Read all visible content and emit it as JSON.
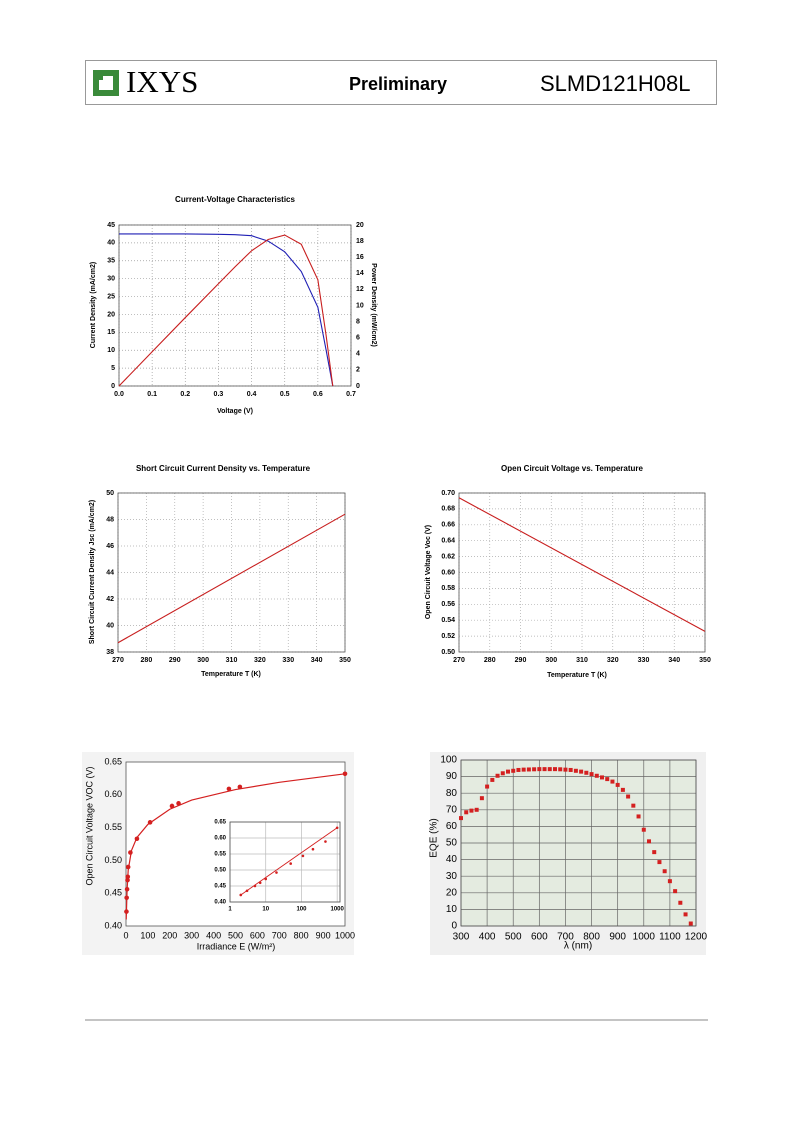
{
  "header": {
    "logo": "IXYS",
    "status": "Preliminary",
    "part_number": "SLMD121H08L"
  },
  "chart_data": [
    {
      "type": "line",
      "title": "Current-Voltage Characteristics",
      "x_label": "Voltage (V)",
      "y_label": "Current Density (mA/cm2)",
      "y2_label": "Power Density (mW/cm2)",
      "grid": true,
      "x": [
        0,
        0.1,
        0.2,
        0.3,
        0.35,
        0.4,
        0.45,
        0.5,
        0.55,
        0.6,
        0.625,
        0.645
      ],
      "series": [
        {
          "color": "#1f1fb4",
          "values": [
            42.5,
            42.5,
            42.5,
            42.4,
            42.3,
            42,
            40.5,
            37.5,
            32,
            22,
            10,
            0
          ]
        },
        {
          "color": "#c81e1e",
          "axis": "y2",
          "values": [
            0,
            4.25,
            8.5,
            12.7,
            14.8,
            16.8,
            18.2,
            18.75,
            17.6,
            13.2,
            6.25,
            0
          ]
        }
      ],
      "xlim": [
        0,
        0.7
      ],
      "xticks": [
        {
          "value": 0,
          "label": "0.0"
        },
        0.1,
        0.2,
        0.3,
        0.4,
        0.5,
        0.6,
        0.7
      ],
      "ylim": [
        0,
        45
      ],
      "yticks": [
        0,
        5,
        10,
        15,
        20,
        25,
        30,
        35,
        40,
        45
      ],
      "y2lim": [
        0,
        20
      ],
      "y2ticks": [
        0,
        2,
        4,
        6,
        8,
        10,
        12,
        14,
        16,
        18,
        20
      ]
    },
    {
      "type": "line",
      "title": "Short Circuit Current Density vs. Temperature",
      "x_label": "Temperature T (K)",
      "y_label": "Short Circuit Current Density Jsc (mA/cm2)",
      "grid": true,
      "x": [
        270,
        350
      ],
      "series": [
        {
          "color": "#c81e1e",
          "values": [
            38.7,
            48.4
          ]
        }
      ],
      "xlim": [
        270,
        350
      ],
      "xticks": [
        270,
        280,
        290,
        300,
        310,
        320,
        330,
        340,
        350
      ],
      "ylim": [
        38,
        50
      ],
      "yticks": [
        38,
        40,
        42,
        44,
        46,
        48,
        50
      ]
    },
    {
      "type": "line",
      "title": "Open Circuit Voltage vs. Temperature",
      "x_label": "Temperature T (K)",
      "y_label": "Open Circuit Voltage Voc (V)",
      "grid": true,
      "x": [
        270,
        350
      ],
      "series": [
        {
          "color": "#c81e1e",
          "values": [
            0.694,
            0.526
          ]
        }
      ],
      "xlim": [
        270,
        350
      ],
      "xticks": [
        270,
        280,
        290,
        300,
        310,
        320,
        330,
        340,
        350
      ],
      "ylim": [
        0.5,
        0.7
      ],
      "yticks": [
        {
          "value": 0.5,
          "label": "0.50"
        },
        0.52,
        0.54,
        0.56,
        0.58,
        {
          "value": 0.6,
          "label": "0.60"
        },
        0.62,
        0.64,
        0.66,
        0.68,
        {
          "value": 0.7,
          "label": "0.70"
        }
      ]
    },
    {
      "type": "scatter",
      "x_label": "Irradiance E (W/m²)",
      "y_label": "Open Circuit Voltage VOC (V)",
      "grid": false,
      "series": [
        {
          "color": "#d42020",
          "style": "line",
          "x": [
            1,
            5,
            10,
            25,
            50,
            100,
            200,
            300,
            500,
            700,
            1000
          ],
          "values": [
            0.41,
            0.455,
            0.485,
            0.515,
            0.535,
            0.555,
            0.578,
            0.592,
            0.608,
            0.619,
            0.632
          ]
        },
        {
          "color": "#d42020",
          "style": "marker",
          "x": [
            2,
            3,
            5,
            7,
            8,
            10,
            20,
            50,
            110,
            210,
            240,
            470,
            520,
            1000
          ],
          "values": [
            0.422,
            0.443,
            0.456,
            0.47,
            0.475,
            0.49,
            0.512,
            0.533,
            0.558,
            0.583,
            0.587,
            0.609,
            0.612,
            0.632
          ]
        }
      ],
      "xlim": [
        0,
        1000
      ],
      "xticks": [
        0,
        100,
        200,
        300,
        400,
        500,
        600,
        700,
        800,
        900,
        1000
      ],
      "ylim": [
        0.4,
        0.65
      ],
      "yticks": [
        {
          "value": 0.4,
          "label": "0.40"
        },
        0.45,
        {
          "value": 0.5,
          "label": "0.50"
        },
        0.55,
        {
          "value": 0.6,
          "label": "0.60"
        },
        0.65
      ]
    },
    {
      "type": "scatter",
      "log_x": true,
      "grid": true,
      "series": [
        {
          "color": "#d42020",
          "style": "line",
          "x": [
            2,
            1000
          ],
          "values": [
            0.422,
            0.632
          ]
        },
        {
          "color": "#d42020",
          "style": "marker",
          "x": [
            2,
            3,
            5,
            7,
            10,
            20,
            50,
            110,
            210,
            470,
            1000
          ],
          "values": [
            0.422,
            0.435,
            0.45,
            0.46,
            0.472,
            0.492,
            0.52,
            0.544,
            0.565,
            0.589,
            0.632
          ]
        }
      ],
      "xlim": [
        1,
        1200
      ],
      "xticks": [
        1,
        10,
        100,
        1000
      ],
      "ylim": [
        0.4,
        0.65
      ],
      "yticks": [
        {
          "value": 0.4,
          "label": "0.40"
        },
        0.45,
        {
          "value": 0.5,
          "label": "0.50"
        },
        0.55,
        {
          "value": 0.6,
          "label": "0.60"
        },
        0.65
      ]
    },
    {
      "type": "scatter",
      "x_label": "λ (nm)",
      "y_label": "EQE (%)",
      "grid": true,
      "series": [
        {
          "color": "#d42020",
          "style": "square",
          "x": [
            300,
            320,
            340,
            360,
            380,
            400,
            420,
            440,
            460,
            480,
            500,
            520,
            540,
            560,
            580,
            600,
            620,
            640,
            660,
            680,
            700,
            720,
            740,
            760,
            780,
            800,
            820,
            840,
            860,
            880,
            900,
            920,
            940,
            960,
            980,
            1000,
            1020,
            1040,
            1060,
            1080,
            1100,
            1120,
            1140,
            1160,
            1180
          ],
          "values": [
            65,
            68.5,
            69.5,
            70,
            77,
            84,
            88,
            90.5,
            92,
            93,
            93.5,
            94,
            94.2,
            94.3,
            94.4,
            94.5,
            94.5,
            94.5,
            94.5,
            94.4,
            94.2,
            94,
            93.5,
            93,
            92.3,
            91.5,
            90.5,
            89.5,
            88.5,
            87,
            85,
            82,
            78,
            72.5,
            66,
            58,
            51,
            44.5,
            38.5,
            33,
            27,
            21,
            14,
            7,
            1.5
          ]
        }
      ],
      "xlim": [
        300,
        1200
      ],
      "xticks": [
        300,
        400,
        500,
        600,
        700,
        800,
        900,
        1000,
        1100,
        1200
      ],
      "ylim": [
        0,
        100
      ],
      "yticks": [
        0,
        10,
        20,
        30,
        40,
        50,
        60,
        70,
        80,
        90,
        100
      ]
    }
  ]
}
